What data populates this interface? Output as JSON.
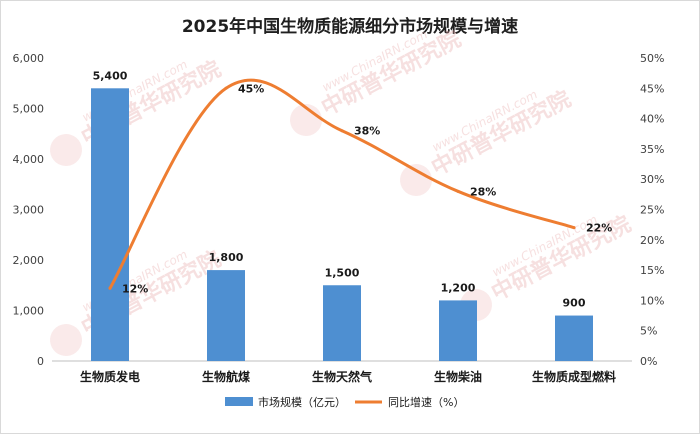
{
  "chart_data": {
    "type": "bar",
    "title": "2025年中国生物质能源细分市场规模与增速",
    "categories": [
      "生物质发电",
      "生物航煤",
      "生物天然气",
      "生物柴油",
      "生物质成型燃料"
    ],
    "series": [
      {
        "name": "市场规模（亿元）",
        "kind": "bar",
        "axis": "left",
        "color": "#4e8fd1",
        "values": [
          5400,
          1800,
          1500,
          1200,
          900
        ],
        "labels": [
          "5,400",
          "1,800",
          "1,500",
          "1,200",
          "900"
        ]
      },
      {
        "name": "同比增速（%）",
        "kind": "line",
        "axis": "right",
        "color": "#ee7d31",
        "values": [
          12,
          45,
          38,
          28,
          22
        ],
        "labels": [
          "12%",
          "45%",
          "38%",
          "28%",
          "22%"
        ]
      }
    ],
    "yleft": {
      "min": 0,
      "max": 6000,
      "step": 1000,
      "ticks": [
        "0",
        "1,000",
        "2,000",
        "3,000",
        "4,000",
        "5,000",
        "6,000"
      ]
    },
    "yright": {
      "min": 0,
      "max": 50,
      "step": 5,
      "ticks": [
        "0%",
        "5%",
        "10%",
        "15%",
        "20%",
        "25%",
        "30%",
        "35%",
        "40%",
        "45%",
        "50%"
      ]
    },
    "grid": false,
    "legend": "bottom"
  },
  "watermark": {
    "text": "中研普华研究院",
    "url": "www.ChinaIRN.com",
    "logo": "CIRN"
  }
}
